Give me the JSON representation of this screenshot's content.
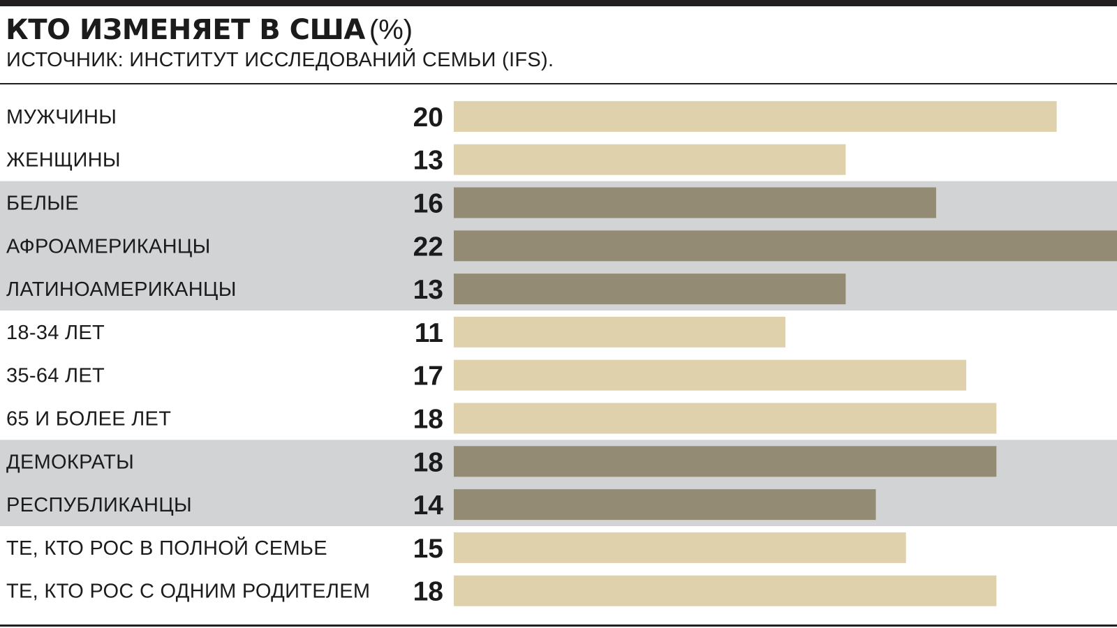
{
  "title": "КТО ИЗМЕНЯЕТ В США",
  "title_unit": "(%)",
  "subtitle": "ИСТОЧНИК: ИНСТИТУТ ИССЛЕДОВАНИЙ СЕМЬИ (IFS).",
  "colors": {
    "light_bar": "#dfd1ab",
    "dark_bar": "#938b73",
    "band": "#d2d3d5",
    "text": "#1b1b1b",
    "rule": "#231f20"
  },
  "chart_data": {
    "type": "bar",
    "orientation": "horizontal",
    "xlim": [
      0,
      22
    ],
    "grid": false,
    "categories": [
      "МУЖЧИНЫ",
      "ЖЕНЩИНЫ",
      "БЕЛЫЕ",
      "АФРОАМЕРИКАНЦЫ",
      "ЛАТИНОАМЕРИКАНЦЫ",
      "18-34 ЛЕТ",
      "35-64 ЛЕТ",
      "65 И БОЛЕЕ ЛЕТ",
      "ДЕМОКРАТЫ",
      "РЕСПУБЛИКАНЦЫ",
      "ТЕ, КТО РОС В ПОЛНОЙ СЕМЬЕ",
      "ТЕ, КТО РОС С ОДНИМ РОДИТЕЛЕМ"
    ],
    "values": [
      20,
      13,
      16,
      22,
      13,
      11,
      17,
      18,
      18,
      14,
      15,
      18
    ],
    "groups": [
      {
        "rows": [
          0,
          1
        ],
        "shaded": false
      },
      {
        "rows": [
          2,
          3,
          4
        ],
        "shaded": true
      },
      {
        "rows": [
          5,
          6,
          7
        ],
        "shaded": false
      },
      {
        "rows": [
          8,
          9
        ],
        "shaded": true
      },
      {
        "rows": [
          10,
          11
        ],
        "shaded": false
      }
    ]
  }
}
